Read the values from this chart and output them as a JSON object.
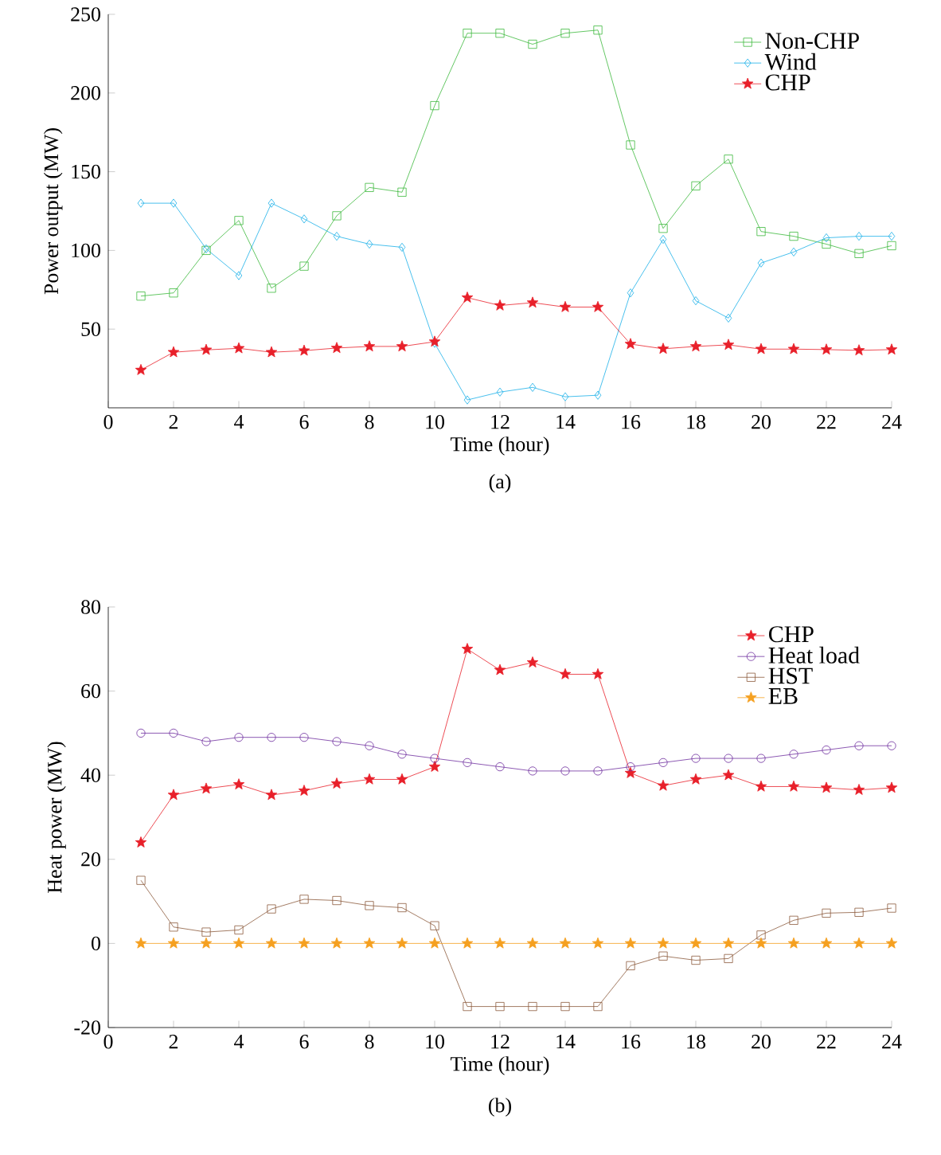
{
  "chart_data": [
    {
      "type": "line",
      "xlabel": "Time (hour)",
      "ylabel": "Power output (MW)",
      "annotations": [
        "(a)"
      ],
      "x": [
        1,
        2,
        3,
        4,
        5,
        6,
        7,
        8,
        9,
        10,
        11,
        12,
        13,
        14,
        15,
        16,
        17,
        18,
        19,
        20,
        21,
        22,
        23,
        24
      ],
      "xlim": [
        0,
        24
      ],
      "xticks": [
        0,
        2,
        4,
        6,
        8,
        10,
        12,
        14,
        16,
        18,
        20,
        22,
        24
      ],
      "ylim": [
        0,
        250
      ],
      "yticks": [
        50,
        100,
        150,
        200,
        250
      ],
      "legend": "top right",
      "grid": false,
      "series": [
        {
          "name": "Non-CHP",
          "color": "#3cb93c",
          "marker": "square",
          "values": [
            71,
            73,
            100,
            119,
            76,
            90,
            122,
            140,
            137,
            192,
            238,
            238,
            231,
            238,
            240,
            167,
            114,
            141,
            158,
            112,
            109,
            104,
            98,
            103
          ]
        },
        {
          "name": "Wind",
          "color": "#1ab0e8",
          "marker": "diamond",
          "values": [
            130,
            130,
            101,
            84,
            130,
            120,
            109,
            104,
            102,
            41,
            5,
            10,
            13,
            7,
            8,
            73,
            107,
            68,
            57,
            92,
            99,
            108,
            109,
            109
          ]
        },
        {
          "name": "CHP",
          "color": "#e8202a",
          "marker": "star",
          "values": [
            24,
            35.3,
            36.8,
            37.8,
            35.3,
            36.3,
            38,
            39,
            39,
            42,
            70,
            65,
            66.8,
            64,
            64,
            40.5,
            37.5,
            39,
            40,
            37.3,
            37.3,
            37,
            36.5,
            37
          ]
        }
      ]
    },
    {
      "type": "line",
      "xlabel": "Time (hour)",
      "ylabel": "Heat power (MW)",
      "annotations": [
        "(b)"
      ],
      "x": [
        1,
        2,
        3,
        4,
        5,
        6,
        7,
        8,
        9,
        10,
        11,
        12,
        13,
        14,
        15,
        16,
        17,
        18,
        19,
        20,
        21,
        22,
        23,
        24
      ],
      "xlim": [
        0,
        24
      ],
      "xticks": [
        0,
        2,
        4,
        6,
        8,
        10,
        12,
        14,
        16,
        18,
        20,
        22,
        24
      ],
      "ylim": [
        -20,
        80
      ],
      "yticks": [
        -20,
        0,
        20,
        40,
        60,
        80
      ],
      "legend": "top right",
      "grid": false,
      "series": [
        {
          "name": "CHP",
          "color": "#e8202a",
          "marker": "star",
          "values": [
            24,
            35.3,
            36.8,
            37.8,
            35.3,
            36.3,
            38,
            39,
            39,
            42,
            70,
            65,
            66.8,
            64,
            64,
            40.5,
            37.5,
            39,
            40,
            37.3,
            37.3,
            37,
            36.5,
            37
          ]
        },
        {
          "name": "Heat load",
          "color": "#7030a0",
          "marker": "circle",
          "values": [
            50,
            50,
            48,
            49,
            49,
            49,
            48,
            47,
            45,
            44,
            43,
            42,
            41,
            41,
            41,
            42,
            43,
            44,
            44,
            44,
            45,
            46,
            47,
            47
          ]
        },
        {
          "name": "HST",
          "color": "#8b5a3c",
          "marker": "square",
          "values": [
            15,
            3.9,
            2.7,
            3.2,
            8.2,
            10.5,
            10.2,
            9,
            8.5,
            4.2,
            -15,
            -15,
            -15,
            -15,
            -15,
            -5.3,
            -3,
            -4,
            -3.6,
            2,
            5.5,
            7.2,
            7.4,
            8.4
          ]
        },
        {
          "name": "EB",
          "color": "#f5a020",
          "marker": "star",
          "values": [
            0,
            0,
            0,
            0,
            0,
            0,
            0,
            0,
            0,
            0,
            0,
            0,
            0,
            0,
            0,
            0,
            0,
            0,
            0,
            0,
            0,
            0,
            0,
            0
          ]
        }
      ]
    }
  ]
}
